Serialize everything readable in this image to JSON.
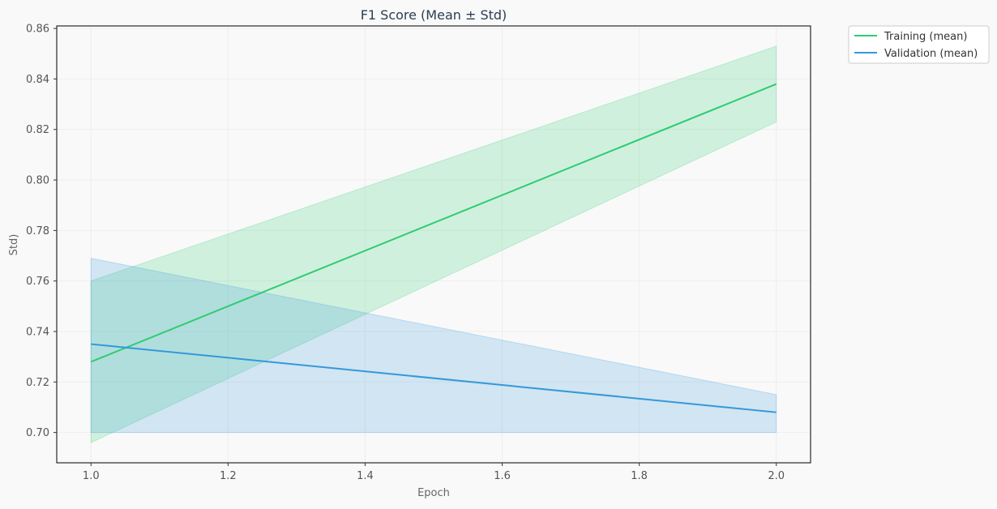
{
  "chart_data": {
    "type": "line",
    "title": "F1 Score (Mean ± Std)",
    "xlabel": "Epoch",
    "ylabel": "Std)",
    "xlim": [
      0.95,
      2.05
    ],
    "ylim": [
      0.688,
      0.861
    ],
    "x_ticks": [
      "1.0",
      "1.2",
      "1.4",
      "1.6",
      "1.8",
      "2.0"
    ],
    "y_ticks": [
      "0.70",
      "0.72",
      "0.74",
      "0.76",
      "0.78",
      "0.80",
      "0.82",
      "0.84",
      "0.86"
    ],
    "grid": true,
    "legend_position": "outside-top-right",
    "series": [
      {
        "name": "Training (mean)",
        "color": "#2ecc71",
        "x": [
          1.0,
          2.0
        ],
        "mean": [
          0.728,
          0.838
        ],
        "lower": [
          0.696,
          0.823
        ],
        "upper": [
          0.76,
          0.853
        ]
      },
      {
        "name": "Validation (mean)",
        "color": "#3498db",
        "x": [
          1.0,
          2.0
        ],
        "mean": [
          0.735,
          0.708
        ],
        "lower": [
          0.7,
          0.7
        ],
        "upper": [
          0.769,
          0.715
        ]
      }
    ]
  }
}
